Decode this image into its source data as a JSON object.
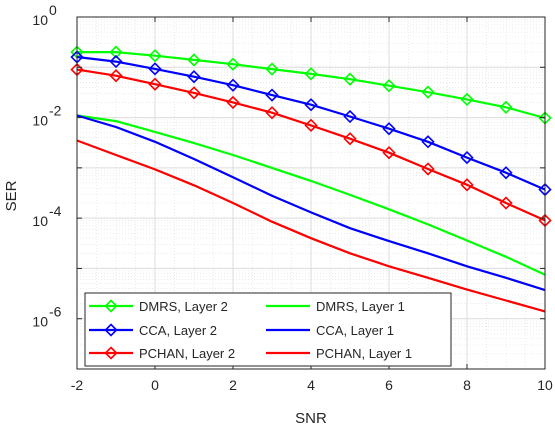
{
  "chart_data": {
    "type": "line",
    "title": "",
    "xlabel": "SNR",
    "ylabel": "SER",
    "xlim": [
      -2,
      10
    ],
    "ylim": [
      1e-07,
      1
    ],
    "yscale": "log",
    "grid": true,
    "minor_grid": true,
    "legend_position": "bottom-left",
    "x_ticks": [
      "-2",
      "0",
      "2",
      "4",
      "6",
      "8",
      "10"
    ],
    "y_ticks": [
      {
        "base": "10",
        "exp": "0",
        "value": 1
      },
      {
        "base": "10",
        "exp": "-2",
        "value": 0.01
      },
      {
        "base": "10",
        "exp": "-4",
        "value": 0.0001
      },
      {
        "base": "10",
        "exp": "-6",
        "value": 1e-06
      }
    ],
    "series": [
      {
        "name": "DMRS, Layer 2",
        "color": "#00ff00",
        "marker": "diamond",
        "x": [
          -2,
          -1,
          0,
          1,
          2,
          3,
          4,
          5,
          6,
          7,
          8,
          9,
          10
        ],
        "y": [
          0.2,
          0.2,
          0.17,
          0.14,
          0.115,
          0.092,
          0.074,
          0.058,
          0.043,
          0.032,
          0.023,
          0.016,
          0.0098
        ]
      },
      {
        "name": "CCA, Layer 2",
        "color": "#0000ff",
        "marker": "diamond",
        "x": [
          -2,
          -1,
          0,
          1,
          2,
          3,
          4,
          5,
          6,
          7,
          8,
          9,
          10
        ],
        "y": [
          0.16,
          0.13,
          0.093,
          0.065,
          0.044,
          0.028,
          0.018,
          0.0105,
          0.006,
          0.0033,
          0.0016,
          0.0008,
          0.00037
        ]
      },
      {
        "name": "PCHAN, Layer 2",
        "color": "#ff0000",
        "marker": "diamond",
        "x": [
          -2,
          -1,
          0,
          1,
          2,
          3,
          4,
          5,
          6,
          7,
          8,
          9,
          10
        ],
        "y": [
          0.09,
          0.068,
          0.046,
          0.031,
          0.02,
          0.0125,
          0.007,
          0.0038,
          0.002,
          0.00095,
          0.00046,
          0.0002,
          9e-05
        ]
      },
      {
        "name": "DMRS, Layer 1",
        "color": "#00ff00",
        "marker": "none",
        "x": [
          -2,
          -1,
          0,
          1,
          2,
          3,
          4,
          5,
          6,
          7,
          8,
          9,
          10
        ],
        "y": [
          0.011,
          0.0085,
          0.0052,
          0.0031,
          0.0018,
          0.001,
          0.00055,
          0.00029,
          0.00015,
          7.5e-05,
          3.6e-05,
          1.7e-05,
          7.5e-06
        ]
      },
      {
        "name": "CCA, Layer 1",
        "color": "#0000ff",
        "marker": "none",
        "x": [
          -2,
          -1,
          0,
          1,
          2,
          3,
          4,
          5,
          6,
          7,
          8,
          9,
          10
        ],
        "y": [
          0.011,
          0.0065,
          0.0033,
          0.0015,
          0.00065,
          0.00028,
          0.00013,
          6.3e-05,
          3.5e-05,
          2e-05,
          1.1e-05,
          6.5e-06,
          3.7e-06
        ]
      },
      {
        "name": "PCHAN, Layer 1",
        "color": "#ff0000",
        "marker": "none",
        "x": [
          -2,
          -1,
          0,
          1,
          2,
          3,
          4,
          5,
          6,
          7,
          8,
          9,
          10
        ],
        "y": [
          0.0035,
          0.0018,
          0.00093,
          0.00045,
          0.0002,
          8.5e-05,
          4e-05,
          2e-05,
          1.1e-05,
          6.5e-06,
          3.8e-06,
          2.3e-06,
          1.4e-06
        ]
      }
    ],
    "legend_layout": [
      [
        "DMRS, Layer 2",
        "DMRS, Layer 1"
      ],
      [
        "CCA, Layer 2",
        "CCA, Layer 1"
      ],
      [
        "PCHAN, Layer 2",
        "PCHAN, Layer 1"
      ]
    ]
  }
}
